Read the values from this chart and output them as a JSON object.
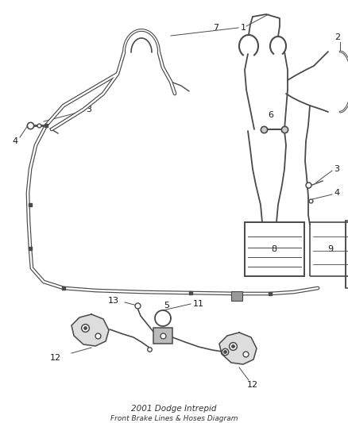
{
  "bg_color": "#ffffff",
  "line_color": "#4a4a4a",
  "label_color": "#1a1a1a",
  "label_fontsize": 8,
  "figsize": [
    4.38,
    5.33
  ],
  "dpi": 100
}
